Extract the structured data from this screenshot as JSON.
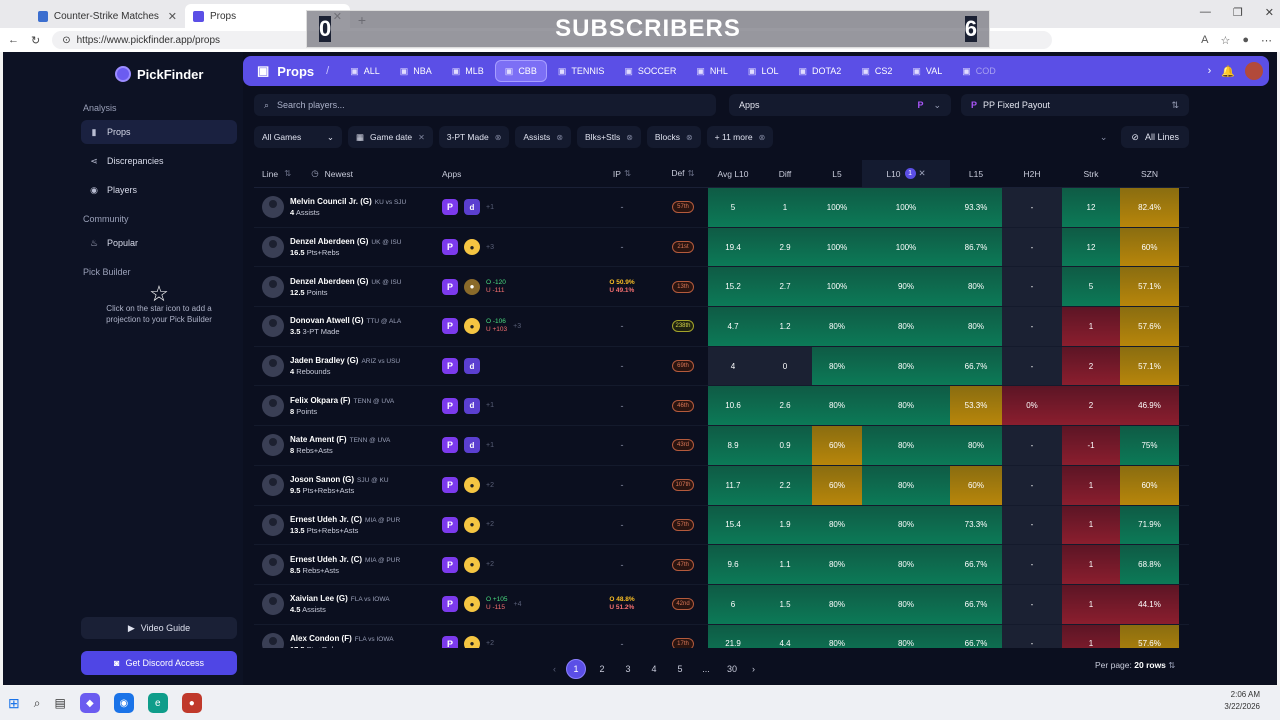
{
  "browser": {
    "tabs": [
      {
        "title": "Counter-Strike Matches & livescor",
        "active": false
      },
      {
        "title": "Props",
        "active": true
      }
    ],
    "url": "https://www.pickfinder.app/props"
  },
  "overlay": {
    "left_count": "0",
    "title": "SUBSCRIBERS",
    "right_count": "6"
  },
  "sidebar": {
    "brand": "PickFinder",
    "analysis_label": "Analysis",
    "items": [
      {
        "label": "Props",
        "icon": "bar-chart-icon",
        "active": true
      },
      {
        "label": "Discrepancies",
        "icon": "share-icon",
        "active": false
      },
      {
        "label": "Players",
        "icon": "user-icon",
        "active": false
      }
    ],
    "community_label": "Community",
    "popular_label": "Popular",
    "pick_builder_label": "Pick Builder",
    "pick_builder_hint": "Click on the star icon to add a projection to your Pick Builder",
    "video_guide": "Video Guide",
    "discord": "Get Discord Access"
  },
  "topbar": {
    "title": "Props",
    "sports": [
      {
        "label": "ALL",
        "active": false
      },
      {
        "label": "NBA",
        "active": false
      },
      {
        "label": "MLB",
        "active": false
      },
      {
        "label": "CBB",
        "active": true
      },
      {
        "label": "TENNIS",
        "active": false
      },
      {
        "label": "SOCCER",
        "active": false
      },
      {
        "label": "NHL",
        "active": false
      },
      {
        "label": "LOL",
        "active": false
      },
      {
        "label": "DOTA2",
        "active": false
      },
      {
        "label": "CS2",
        "active": false
      },
      {
        "label": "VAL",
        "active": false
      },
      {
        "label": "COD",
        "active": false
      }
    ]
  },
  "search": {
    "placeholder": "Search players..."
  },
  "apps_select": {
    "label": "Apps"
  },
  "payout_select": {
    "label": "PP Fixed Payout"
  },
  "filters": {
    "all_games": "All Games",
    "game_date": "Game date",
    "chips": [
      "3-PT Made",
      "Assists",
      "Blks+Stls",
      "Blocks",
      "+ 11 more"
    ],
    "all_lines": "All Lines"
  },
  "table": {
    "headers": {
      "line": "Line",
      "newest": "Newest",
      "apps": "Apps",
      "ip": "IP",
      "def": "Def",
      "avg": "Avg L10",
      "diff": "Diff",
      "l5": "L5",
      "l10": "L10",
      "l10_badge": "1",
      "l15": "L15",
      "h2h": "H2H",
      "strk": "Strk",
      "szn": "SZN"
    },
    "rows": [
      {
        "name": "Melvin Council Jr. (G)",
        "team": "KU vs SJU",
        "line": "4",
        "stat": "Assists",
        "apps": [
          "pp",
          "d"
        ],
        "more": "+1",
        "odds": null,
        "ip": "-",
        "ipodds": null,
        "def": "57th",
        "defgood": false,
        "avg": "5",
        "diff": "1",
        "l5": "100%",
        "l10": "100%",
        "l15": "93.3%",
        "h2h": "-",
        "strk": "12",
        "szn": "82.4%",
        "cls": [
          "g",
          "g",
          "g",
          "g",
          "g",
          "n",
          "g",
          "y"
        ]
      },
      {
        "name": "Denzel Aberdeen (G)",
        "team": "UK @ ISU",
        "line": "16.5",
        "stat": "Pts+Rebs",
        "apps": [
          "pp",
          "u"
        ],
        "more": "+3",
        "odds": null,
        "ip": "-",
        "ipodds": null,
        "def": "21st",
        "defgood": false,
        "avg": "19.4",
        "diff": "2.9",
        "l5": "100%",
        "l10": "100%",
        "l15": "86.7%",
        "h2h": "-",
        "strk": "12",
        "szn": "60%",
        "cls": [
          "g",
          "g",
          "g",
          "g",
          "g",
          "n",
          "g",
          "y"
        ]
      },
      {
        "name": "Denzel Aberdeen (G)",
        "team": "UK @ ISU",
        "line": "12.5",
        "stat": "Points",
        "apps": [
          "pp",
          "g"
        ],
        "more": "",
        "odds": [
          "O -120",
          "U -111"
        ],
        "ip": "",
        "ipodds": [
          "O 50.9%",
          "U 49.1%"
        ],
        "def": "13th",
        "defgood": false,
        "avg": "15.2",
        "diff": "2.7",
        "l5": "100%",
        "l10": "90%",
        "l15": "80%",
        "h2h": "-",
        "strk": "5",
        "szn": "57.1%",
        "cls": [
          "g",
          "g",
          "g",
          "g",
          "g",
          "n",
          "g",
          "y"
        ]
      },
      {
        "name": "Donovan Atwell (G)",
        "team": "TTU @ ALA",
        "line": "3.5",
        "stat": "3-PT Made",
        "apps": [
          "pp",
          "u"
        ],
        "more": "+3",
        "odds": [
          "O -106",
          "U +103"
        ],
        "ip": "-",
        "ipodds": null,
        "def": "238th",
        "defgood": true,
        "avg": "4.7",
        "diff": "1.2",
        "l5": "80%",
        "l10": "80%",
        "l15": "80%",
        "h2h": "-",
        "strk": "1",
        "szn": "57.6%",
        "cls": [
          "g",
          "g",
          "g",
          "g",
          "g",
          "n",
          "r",
          "y"
        ]
      },
      {
        "name": "Jaden Bradley (G)",
        "team": "ARIZ vs USU",
        "line": "4",
        "stat": "Rebounds",
        "apps": [
          "pp",
          "d"
        ],
        "more": "",
        "odds": null,
        "ip": "-",
        "ipodds": null,
        "def": "69th",
        "defgood": false,
        "avg": "4",
        "diff": "0",
        "l5": "80%",
        "l10": "80%",
        "l15": "66.7%",
        "h2h": "-",
        "strk": "2",
        "szn": "57.1%",
        "cls": [
          "n",
          "n",
          "g",
          "g",
          "g",
          "n",
          "r",
          "y"
        ]
      },
      {
        "name": "Felix Okpara (F)",
        "team": "TENN @ UVA",
        "line": "8",
        "stat": "Points",
        "apps": [
          "pp",
          "d"
        ],
        "more": "+1",
        "odds": null,
        "ip": "-",
        "ipodds": null,
        "def": "46th",
        "defgood": false,
        "avg": "10.6",
        "diff": "2.6",
        "l5": "80%",
        "l10": "80%",
        "l15": "53.3%",
        "h2h": "0%",
        "strk": "2",
        "szn": "46.9%",
        "cls": [
          "g",
          "g",
          "g",
          "g",
          "y",
          "r",
          "r",
          "r"
        ]
      },
      {
        "name": "Nate Ament (F)",
        "team": "TENN @ UVA",
        "line": "8",
        "stat": "Rebs+Asts",
        "apps": [
          "pp",
          "d"
        ],
        "more": "+1",
        "odds": null,
        "ip": "-",
        "ipodds": null,
        "def": "43rd",
        "defgood": false,
        "avg": "8.9",
        "diff": "0.9",
        "l5": "60%",
        "l10": "80%",
        "l15": "80%",
        "h2h": "-",
        "strk": "-1",
        "szn": "75%",
        "cls": [
          "g",
          "g",
          "y",
          "g",
          "g",
          "n",
          "r",
          "g"
        ]
      },
      {
        "name": "Joson Sanon (G)",
        "team": "SJU @ KU",
        "line": "9.5",
        "stat": "Pts+Rebs+Asts",
        "apps": [
          "pp",
          "u"
        ],
        "more": "+2",
        "odds": null,
        "ip": "-",
        "ipodds": null,
        "def": "107th",
        "defgood": false,
        "avg": "11.7",
        "diff": "2.2",
        "l5": "60%",
        "l10": "80%",
        "l15": "60%",
        "h2h": "-",
        "strk": "1",
        "szn": "60%",
        "cls": [
          "g",
          "g",
          "y",
          "g",
          "y",
          "n",
          "r",
          "y"
        ]
      },
      {
        "name": "Ernest Udeh Jr. (C)",
        "team": "MIA @ PUR",
        "line": "13.5",
        "stat": "Pts+Rebs+Asts",
        "apps": [
          "pp",
          "u"
        ],
        "more": "+2",
        "odds": null,
        "ip": "-",
        "ipodds": null,
        "def": "57th",
        "defgood": false,
        "avg": "15.4",
        "diff": "1.9",
        "l5": "80%",
        "l10": "80%",
        "l15": "73.3%",
        "h2h": "-",
        "strk": "1",
        "szn": "71.9%",
        "cls": [
          "g",
          "g",
          "g",
          "g",
          "g",
          "n",
          "r",
          "g"
        ]
      },
      {
        "name": "Ernest Udeh Jr. (C)",
        "team": "MIA @ PUR",
        "line": "8.5",
        "stat": "Rebs+Asts",
        "apps": [
          "pp",
          "u"
        ],
        "more": "+2",
        "odds": null,
        "ip": "-",
        "ipodds": null,
        "def": "47th",
        "defgood": false,
        "avg": "9.6",
        "diff": "1.1",
        "l5": "80%",
        "l10": "80%",
        "l15": "66.7%",
        "h2h": "-",
        "strk": "1",
        "szn": "68.8%",
        "cls": [
          "g",
          "g",
          "g",
          "g",
          "g",
          "n",
          "r",
          "g"
        ]
      },
      {
        "name": "Xaivian Lee (G)",
        "team": "FLA vs IOWA",
        "line": "4.5",
        "stat": "Assists",
        "apps": [
          "pp",
          "u"
        ],
        "more": "+4",
        "odds": [
          "O +105",
          "U -115"
        ],
        "ip": "",
        "ipodds": [
          "O 48.8%",
          "U 51.2%"
        ],
        "def": "42nd",
        "defgood": false,
        "avg": "6",
        "diff": "1.5",
        "l5": "80%",
        "l10": "80%",
        "l15": "66.7%",
        "h2h": "-",
        "strk": "1",
        "szn": "44.1%",
        "cls": [
          "g",
          "g",
          "g",
          "g",
          "g",
          "n",
          "r",
          "r"
        ]
      },
      {
        "name": "Alex Condon (F)",
        "team": "FLA vs IOWA",
        "line": "17.5",
        "stat": "Pts+Rebs",
        "apps": [
          "pp",
          "u"
        ],
        "more": "+2",
        "odds": null,
        "ip": "-",
        "ipodds": null,
        "def": "17th",
        "defgood": false,
        "avg": "21.9",
        "diff": "4.4",
        "l5": "80%",
        "l10": "80%",
        "l15": "66.7%",
        "h2h": "-",
        "strk": "1",
        "szn": "57.6%",
        "cls": [
          "g",
          "g",
          "g",
          "g",
          "g",
          "n",
          "r",
          "y"
        ]
      }
    ]
  },
  "pagination": {
    "pages": [
      "1",
      "2",
      "3",
      "4",
      "5",
      "...",
      "30"
    ],
    "per_page_label": "Per page:",
    "per_page_value": "20 rows"
  },
  "taskbar": {
    "time": "2:06 AM",
    "date": "3/22/2026"
  }
}
